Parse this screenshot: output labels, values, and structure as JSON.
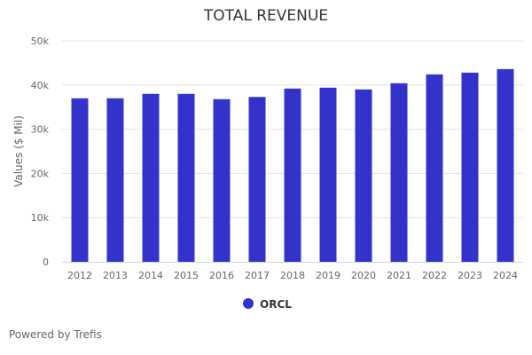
{
  "chart_data": {
    "type": "bar",
    "title": "TOTAL REVENUE",
    "xlabel": "",
    "ylabel": "Values ($ Mil)",
    "ylim": [
      0,
      50000
    ],
    "yticks": [
      0,
      10000,
      20000,
      30000,
      40000,
      50000
    ],
    "ytick_labels": [
      "0",
      "10k",
      "20k",
      "30k",
      "40k",
      "50k"
    ],
    "grid": true,
    "legend_position": "bottom",
    "categories": [
      "2012",
      "2013",
      "2014",
      "2015",
      "2016",
      "2017",
      "2018",
      "2019",
      "2020",
      "2021",
      "2022",
      "2023",
      "2024"
    ],
    "series": [
      {
        "name": "ORCL",
        "color": "#3333cc",
        "values": [
          37000,
          37000,
          38000,
          38000,
          36800,
          37300,
          39200,
          39400,
          39000,
          40400,
          42400,
          42800,
          43600
        ]
      }
    ]
  },
  "footer": {
    "credit": "Powered by Trefis"
  }
}
